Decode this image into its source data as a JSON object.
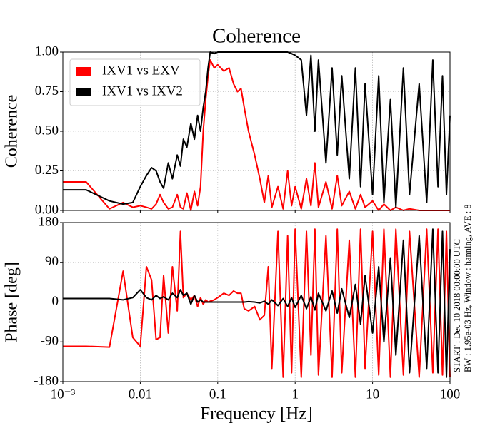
{
  "chart_data": [
    {
      "type": "line",
      "title": "Coherence",
      "ylabel": "Coherence",
      "xscale": "log",
      "grid": true,
      "legend": "upper left",
      "show_xticklabels": false,
      "x": [
        0.001,
        0.002,
        0.004,
        0.006,
        0.008,
        0.01,
        0.012,
        0.014,
        0.016,
        0.018,
        0.02,
        0.023,
        0.026,
        0.03,
        0.033,
        0.036,
        0.04,
        0.045,
        0.05,
        0.055,
        0.06,
        0.065,
        0.07,
        0.075,
        0.08,
        0.09,
        0.1,
        0.12,
        0.14,
        0.16,
        0.18,
        0.2,
        0.22,
        0.25,
        0.3,
        0.35,
        0.4,
        0.45,
        0.5,
        0.6,
        0.7,
        0.8,
        0.9,
        1,
        1.2,
        1.4,
        1.6,
        1.8,
        2,
        2.5,
        3,
        3.5,
        4,
        5,
        6,
        7,
        8,
        10,
        12,
        14,
        17,
        20,
        25,
        30,
        40,
        50,
        60,
        70,
        80,
        90,
        100
      ],
      "xlim": [
        0.001,
        100
      ],
      "xticks": [
        {
          "value": 0.001,
          "label": "10⁻³"
        },
        0.01,
        0.1,
        1,
        10,
        100
      ],
      "ylim": [
        0,
        1
      ],
      "yticks": [
        {
          "value": 0,
          "label": "0.00"
        },
        {
          "value": 0.25,
          "label": "0.25"
        },
        {
          "value": 0.5,
          "label": "0.50"
        },
        {
          "value": 0.75,
          "label": "0.75"
        },
        {
          "value": 1,
          "label": "1.00"
        }
      ],
      "series": [
        {
          "name": "IXV1 vs EXV",
          "color": "#ff0000",
          "values": [
            0.18,
            0.18,
            0.01,
            0.05,
            0.02,
            0.03,
            0.02,
            0.01,
            0.04,
            0.1,
            0.05,
            0.01,
            0.02,
            0.1,
            0.02,
            0.01,
            0.11,
            0.0,
            0.12,
            0.03,
            0.15,
            0.5,
            0.7,
            0.85,
            0.95,
            0.9,
            0.92,
            0.88,
            0.9,
            0.8,
            0.75,
            0.77,
            0.65,
            0.5,
            0.35,
            0.2,
            0.05,
            0.22,
            0.02,
            0.15,
            0.01,
            0.25,
            0.03,
            0.15,
            0.01,
            0.2,
            0.03,
            0.3,
            0.02,
            0.18,
            0.01,
            0.22,
            0.03,
            0.12,
            0.01,
            0.1,
            0.02,
            0.06,
            0.0,
            0.04,
            0.0,
            0.02,
            0.0,
            0.01,
            0,
            0,
            0,
            0,
            0,
            0,
            0
          ]
        },
        {
          "name": "IXV1 vs IXV2",
          "color": "#000000",
          "values": [
            0.13,
            0.13,
            0.06,
            0.04,
            0.05,
            0.15,
            0.22,
            0.27,
            0.25,
            0.18,
            0.14,
            0.3,
            0.2,
            0.35,
            0.28,
            0.45,
            0.4,
            0.55,
            0.45,
            0.6,
            0.5,
            0.65,
            0.75,
            0.9,
            1,
            0.99,
            1,
            1,
            1,
            1,
            1,
            1,
            1,
            1,
            1,
            1,
            1,
            1,
            1,
            1,
            1,
            1,
            0.99,
            0.98,
            0.95,
            0.6,
            0.98,
            0.5,
            0.95,
            0.3,
            0.9,
            0.35,
            0.85,
            0.2,
            0.9,
            0.15,
            0.8,
            0.1,
            0.85,
            0.05,
            0.7,
            0.02,
            0.9,
            0.1,
            0.8,
            0.05,
            0.95,
            0.15,
            0.85,
            0.1,
            0.6
          ]
        }
      ]
    },
    {
      "type": "line",
      "ylabel": "Phase [deg]",
      "xlabel": "Frequency [Hz]",
      "xscale": "log",
      "grid": true,
      "show_xticklabels": true,
      "x": [
        0.001,
        0.002,
        0.004,
        0.006,
        0.008,
        0.01,
        0.012,
        0.014,
        0.016,
        0.018,
        0.02,
        0.023,
        0.026,
        0.03,
        0.033,
        0.036,
        0.04,
        0.045,
        0.05,
        0.055,
        0.06,
        0.065,
        0.07,
        0.075,
        0.08,
        0.09,
        0.1,
        0.12,
        0.14,
        0.16,
        0.18,
        0.2,
        0.22,
        0.25,
        0.3,
        0.35,
        0.4,
        0.45,
        0.5,
        0.6,
        0.7,
        0.8,
        0.9,
        1,
        1.2,
        1.4,
        1.6,
        1.8,
        2,
        2.5,
        3,
        3.5,
        4,
        5,
        6,
        7,
        8,
        10,
        12,
        14,
        17,
        20,
        25,
        30,
        40,
        50,
        60,
        70,
        80,
        90,
        100
      ],
      "xlim": [
        0.001,
        100
      ],
      "xticks": [
        {
          "value": 0.001,
          "label": "10⁻³"
        },
        0.01,
        0.1,
        1,
        10,
        100
      ],
      "ylim": [
        -180,
        180
      ],
      "yticks": [
        -180,
        -90,
        0,
        90,
        180
      ],
      "annotations": [
        "START : Dec 10 2018 00:00:00 UTC",
        "BW : 1.95e-03 Hz, Window : hanning, AVE : 8"
      ],
      "series": [
        {
          "color": "#ff0000",
          "values": [
            -100,
            -100,
            -102,
            70,
            -80,
            -100,
            80,
            50,
            -85,
            -80,
            60,
            -70,
            80,
            -20,
            160,
            10,
            20,
            5,
            15,
            -10,
            10,
            -5,
            5,
            0,
            2,
            5,
            10,
            20,
            15,
            25,
            20,
            20,
            -15,
            -20,
            -10,
            -40,
            -30,
            80,
            -150,
            160,
            -170,
            150,
            -160,
            165,
            -170,
            160,
            -120,
            165,
            -165,
            150,
            -170,
            165,
            -160,
            140,
            -170,
            165,
            -150,
            160,
            -165,
            165,
            -170,
            165,
            -165,
            160,
            -170,
            165,
            -160,
            165,
            -165,
            160,
            -170
          ]
        },
        {
          "color": "#000000",
          "values": [
            8,
            8,
            8,
            5,
            10,
            28,
            10,
            5,
            15,
            8,
            12,
            5,
            20,
            10,
            28,
            15,
            20,
            -5,
            15,
            0,
            5,
            0,
            0,
            0,
            0,
            0,
            0,
            0,
            0,
            0,
            0,
            0,
            0,
            1,
            0,
            -2,
            2,
            -5,
            5,
            -8,
            8,
            -10,
            10,
            -12,
            15,
            -15,
            12,
            -18,
            20,
            -20,
            25,
            -25,
            30,
            -35,
            40,
            -50,
            60,
            -70,
            80,
            -90,
            100,
            -120,
            140,
            -160,
            150,
            -150,
            165,
            -160,
            160,
            -170,
            120
          ]
        }
      ]
    }
  ]
}
